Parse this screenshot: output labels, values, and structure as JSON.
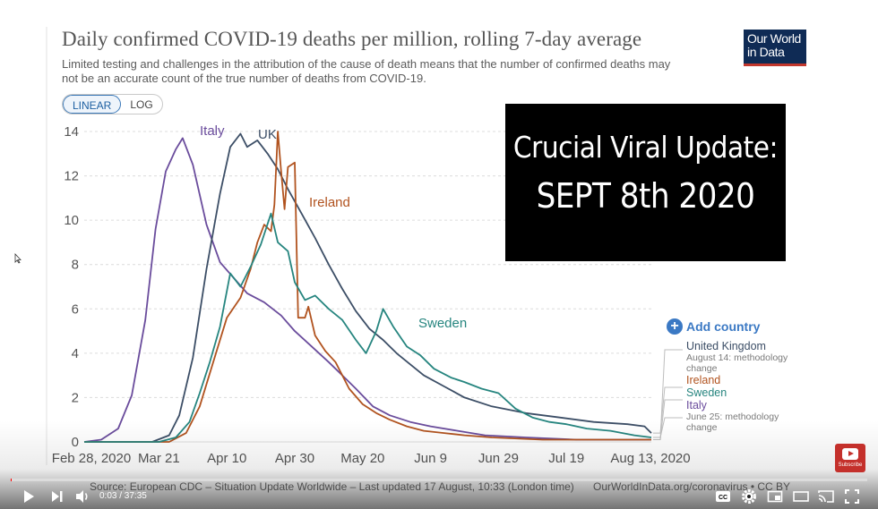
{
  "chart_data": {
    "type": "line",
    "title": "Daily confirmed COVID-19 deaths per million, rolling 7-day average",
    "subtitle": "Limited testing and challenges in the attribution of the cause of death means that the number of confirmed deaths may not be an accurate count of the true number of deaths from COVID-19.",
    "xlabel": "",
    "ylabel": "",
    "ylim": [
      0,
      14
    ],
    "xlim": [
      0,
      167
    ],
    "y_ticks": [
      0,
      2,
      4,
      6,
      8,
      10,
      12,
      14
    ],
    "x_ticks": [
      {
        "day": 0,
        "label": "Feb 28, 2020"
      },
      {
        "day": 22,
        "label": "Mar 21"
      },
      {
        "day": 42,
        "label": "Apr 10"
      },
      {
        "day": 62,
        "label": "Apr 30"
      },
      {
        "day": 82,
        "label": "May 20"
      },
      {
        "day": 102,
        "label": "Jun 9"
      },
      {
        "day": 122,
        "label": "Jun 29"
      },
      {
        "day": 142,
        "label": "Jul 19"
      },
      {
        "day": 167,
        "label": "Aug 13, 2020"
      }
    ],
    "grid": true,
    "series": [
      {
        "name": "Italy",
        "label": "Italy",
        "color": "#6a4c9c",
        "points": [
          [
            0,
            0
          ],
          [
            5,
            0.1
          ],
          [
            10,
            0.6
          ],
          [
            14,
            2.1
          ],
          [
            18,
            5.5
          ],
          [
            21,
            9.6
          ],
          [
            24,
            12.2
          ],
          [
            27,
            13.2
          ],
          [
            29,
            13.7
          ],
          [
            32,
            12.5
          ],
          [
            36,
            9.8
          ],
          [
            40,
            8.1
          ],
          [
            44,
            7.4
          ],
          [
            48,
            6.7
          ],
          [
            53,
            6.3
          ],
          [
            58,
            5.7
          ],
          [
            62,
            5.0
          ],
          [
            67,
            4.3
          ],
          [
            72,
            3.6
          ],
          [
            76,
            3.0
          ],
          [
            80,
            2.4
          ],
          [
            85,
            1.6
          ],
          [
            90,
            1.2
          ],
          [
            96,
            0.9
          ],
          [
            102,
            0.7
          ],
          [
            110,
            0.5
          ],
          [
            118,
            0.3
          ],
          [
            130,
            0.2
          ],
          [
            145,
            0.1
          ],
          [
            167,
            0.1
          ]
        ]
      },
      {
        "name": "United Kingdom",
        "label": "UK",
        "color": "#3c4e66",
        "points": [
          [
            0,
            0
          ],
          [
            20,
            0
          ],
          [
            25,
            0.3
          ],
          [
            28,
            1.2
          ],
          [
            32,
            3.8
          ],
          [
            36,
            7.8
          ],
          [
            40,
            11.2
          ],
          [
            43,
            13.3
          ],
          [
            46,
            13.9
          ],
          [
            48,
            13.3
          ],
          [
            51,
            13.6
          ],
          [
            54,
            13.0
          ],
          [
            57,
            12.3
          ],
          [
            60,
            11.4
          ],
          [
            64,
            10.3
          ],
          [
            68,
            9.2
          ],
          [
            72,
            8.0
          ],
          [
            76,
            6.9
          ],
          [
            80,
            5.9
          ],
          [
            84,
            5.1
          ],
          [
            88,
            4.6
          ],
          [
            92,
            4.0
          ],
          [
            96,
            3.5
          ],
          [
            100,
            3.0
          ],
          [
            106,
            2.5
          ],
          [
            112,
            2.0
          ],
          [
            120,
            1.6
          ],
          [
            130,
            1.3
          ],
          [
            140,
            1.1
          ],
          [
            150,
            0.9
          ],
          [
            160,
            0.8
          ],
          [
            165,
            0.7
          ],
          [
            167,
            0.4
          ]
        ]
      },
      {
        "name": "Ireland",
        "label": "Ireland",
        "color": "#b1531f",
        "points": [
          [
            0,
            0
          ],
          [
            25,
            0
          ],
          [
            30,
            0.4
          ],
          [
            34,
            1.6
          ],
          [
            38,
            3.6
          ],
          [
            42,
            5.6
          ],
          [
            46,
            6.5
          ],
          [
            49,
            7.8
          ],
          [
            51,
            9.0
          ],
          [
            53,
            9.8
          ],
          [
            55,
            9.5
          ],
          [
            56,
            10.7
          ],
          [
            57,
            14.0
          ],
          [
            58,
            12.2
          ],
          [
            59,
            10.5
          ],
          [
            60,
            12.4
          ],
          [
            62,
            12.6
          ],
          [
            63,
            5.6
          ],
          [
            65,
            5.6
          ],
          [
            66,
            6.1
          ],
          [
            68,
            4.8
          ],
          [
            71,
            4.1
          ],
          [
            74,
            3.6
          ],
          [
            78,
            2.4
          ],
          [
            82,
            1.7
          ],
          [
            86,
            1.3
          ],
          [
            90,
            1.0
          ],
          [
            95,
            0.7
          ],
          [
            100,
            0.5
          ],
          [
            106,
            0.4
          ],
          [
            112,
            0.3
          ],
          [
            120,
            0.2
          ],
          [
            135,
            0.1
          ],
          [
            167,
            0.1
          ]
        ]
      },
      {
        "name": "Sweden",
        "label": "Sweden",
        "color": "#26857f",
        "points": [
          [
            0,
            0
          ],
          [
            22,
            0
          ],
          [
            27,
            0.2
          ],
          [
            31,
            0.9
          ],
          [
            34,
            2.2
          ],
          [
            37,
            3.6
          ],
          [
            40,
            5.2
          ],
          [
            43,
            7.6
          ],
          [
            46,
            7.0
          ],
          [
            49,
            7.9
          ],
          [
            52,
            8.9
          ],
          [
            55,
            10.3
          ],
          [
            57,
            9.0
          ],
          [
            60,
            8.6
          ],
          [
            62,
            7.2
          ],
          [
            65,
            6.4
          ],
          [
            68,
            6.6
          ],
          [
            72,
            6.0
          ],
          [
            76,
            5.5
          ],
          [
            80,
            4.6
          ],
          [
            83,
            4.0
          ],
          [
            86,
            5.0
          ],
          [
            88,
            6.0
          ],
          [
            91,
            5.2
          ],
          [
            95,
            4.3
          ],
          [
            99,
            3.9
          ],
          [
            103,
            3.3
          ],
          [
            108,
            2.9
          ],
          [
            112,
            2.7
          ],
          [
            117,
            2.4
          ],
          [
            122,
            2.2
          ],
          [
            127,
            1.5
          ],
          [
            132,
            1.1
          ],
          [
            137,
            0.9
          ],
          [
            142,
            0.8
          ],
          [
            148,
            0.6
          ],
          [
            155,
            0.5
          ],
          [
            162,
            0.3
          ],
          [
            167,
            0.2
          ]
        ]
      }
    ]
  },
  "overlay": {
    "line1": "Crucial Viral Update:",
    "line2": "SEPT 8th 2020"
  },
  "logo": {
    "line1": "Our World",
    "line2": "in Data"
  },
  "toggle": {
    "linear": "LINEAR",
    "log": "LOG"
  },
  "add_country": "Add country",
  "legend": {
    "uk": {
      "name": "United Kingdom",
      "note": "August 14: methodology change"
    },
    "ireland": {
      "name": "Ireland"
    },
    "sweden": {
      "name": "Sweden"
    },
    "italy": {
      "name": "Italy",
      "note": "June 25: methodology change"
    }
  },
  "source": {
    "text": "Source: European CDC – Situation Update Worldwide – Last updated 17 August, 10:33 (London time)",
    "link": "OurWorldInData.org/coronavirus • CC BY"
  },
  "subscribe": {
    "label": "Subscribe"
  },
  "player": {
    "current_time": "0:03",
    "duration": "37:35",
    "time_display": "0:03 / 37:35",
    "progress_fraction": 0.0013
  },
  "colors": {
    "accent": "#3b79c4",
    "progress": "#ff0000",
    "brand": "#0f2b55",
    "brand_underline": "#c2372d"
  }
}
